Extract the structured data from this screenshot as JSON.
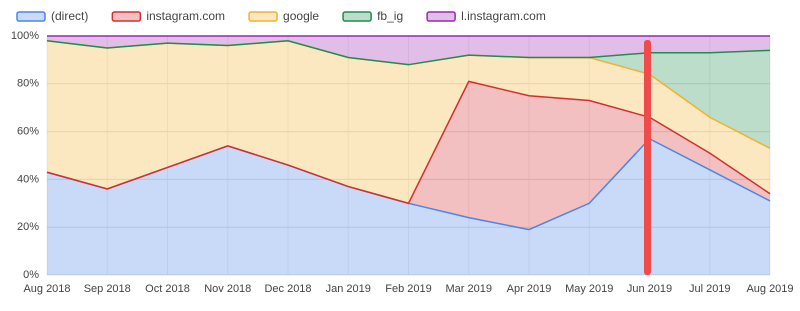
{
  "chart_data": {
    "type": "stacked_area",
    "categories": [
      "Aug 2018",
      "Sep 2018",
      "Oct 2018",
      "Nov 2018",
      "Dec 2018",
      "Jan 2019",
      "Feb 2019",
      "Mar 2019",
      "Apr 2019",
      "May 2019",
      "Jun 2019",
      "Jul 2019",
      "Aug 2019"
    ],
    "series": [
      {
        "name": "(direct)",
        "color": "#4a86e8",
        "values": [
          43,
          36,
          45,
          54,
          46,
          37,
          30,
          24,
          19,
          30,
          57,
          44,
          31
        ]
      },
      {
        "name": "instagram.com",
        "color": "#d32f2f",
        "values": [
          0,
          0,
          0,
          0,
          0,
          0,
          0,
          57,
          56,
          43,
          9,
          7,
          3
        ]
      },
      {
        "name": "google",
        "color": "#f1b233",
        "values": [
          55,
          59,
          52,
          42,
          52,
          54,
          58,
          11,
          16,
          18,
          18,
          15,
          19
        ]
      },
      {
        "name": "fb_ig",
        "color": "#1e8e4e",
        "values": [
          0,
          0,
          0,
          0,
          0,
          0,
          0,
          0,
          0,
          0,
          9,
          27,
          41
        ]
      },
      {
        "name": "l.instagram.com",
        "color": "#9c27b0",
        "values": [
          2,
          5,
          3,
          4,
          2,
          9,
          12,
          8,
          9,
          9,
          7,
          7,
          6
        ]
      }
    ],
    "ylim": [
      0,
      100
    ],
    "yticks": [
      {
        "value": 0,
        "label": "0%"
      },
      {
        "value": 20,
        "label": "20%"
      },
      {
        "value": 40,
        "label": "40%"
      },
      {
        "value": 60,
        "label": "60%"
      },
      {
        "value": 80,
        "label": "80%"
      },
      {
        "value": 100,
        "label": "100%"
      }
    ],
    "grid": true
  }
}
